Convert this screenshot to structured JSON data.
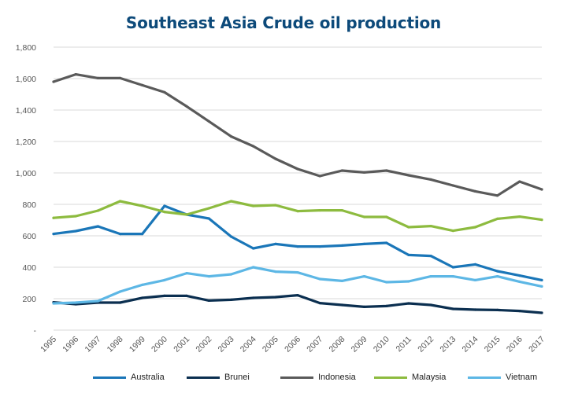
{
  "chart_data": {
    "type": "line",
    "title": "Southeast Asia Crude oil production",
    "xlabel": "",
    "ylabel": "",
    "ylim": [
      0,
      1800
    ],
    "y_ticks": [
      0,
      200,
      400,
      600,
      800,
      1000,
      1200,
      1400,
      1600,
      1800
    ],
    "y_tick_labels": [
      "-",
      "200",
      "400",
      "600",
      "800",
      "1,000",
      "1,200",
      "1,400",
      "1,600",
      "1,800"
    ],
    "grid": true,
    "legend_position": "bottom",
    "categories": [
      "1995",
      "1996",
      "1997",
      "1998",
      "1999",
      "2000",
      "2001",
      "2002",
      "2003",
      "2004",
      "2005",
      "2006",
      "2007",
      "2008",
      "2009",
      "2010",
      "2011",
      "2012",
      "2013",
      "2014",
      "2015",
      "2016",
      "2017"
    ],
    "series": [
      {
        "name": "Australia",
        "color": "#1a76b8",
        "values": [
          612,
          630,
          660,
          612,
          612,
          790,
          735,
          710,
          595,
          520,
          548,
          532,
          532,
          538,
          548,
          555,
          478,
          472,
          400,
          418,
          375,
          347,
          318
        ]
      },
      {
        "name": "Brunei",
        "color": "#0b2f50",
        "values": [
          177,
          165,
          175,
          175,
          205,
          218,
          218,
          188,
          193,
          205,
          210,
          222,
          172,
          160,
          148,
          153,
          170,
          160,
          135,
          130,
          128,
          122,
          110
        ]
      },
      {
        "name": "Indonesia",
        "color": "#5a5a5a",
        "values": [
          1580,
          1627,
          1603,
          1603,
          1558,
          1513,
          1423,
          1328,
          1232,
          1170,
          1090,
          1025,
          980,
          1015,
          1003,
          1015,
          985,
          958,
          920,
          883,
          856,
          945,
          895
        ]
      },
      {
        "name": "Malaysia",
        "color": "#8dbb3f",
        "values": [
          714,
          725,
          760,
          820,
          790,
          752,
          735,
          775,
          820,
          790,
          795,
          757,
          762,
          762,
          720,
          720,
          655,
          662,
          632,
          655,
          708,
          722,
          702
        ]
      },
      {
        "name": "Vietnam",
        "color": "#5db7e5",
        "values": [
          170,
          175,
          185,
          245,
          288,
          318,
          362,
          342,
          355,
          400,
          372,
          367,
          325,
          313,
          342,
          305,
          310,
          342,
          342,
          318,
          342,
          308,
          278
        ]
      }
    ]
  }
}
